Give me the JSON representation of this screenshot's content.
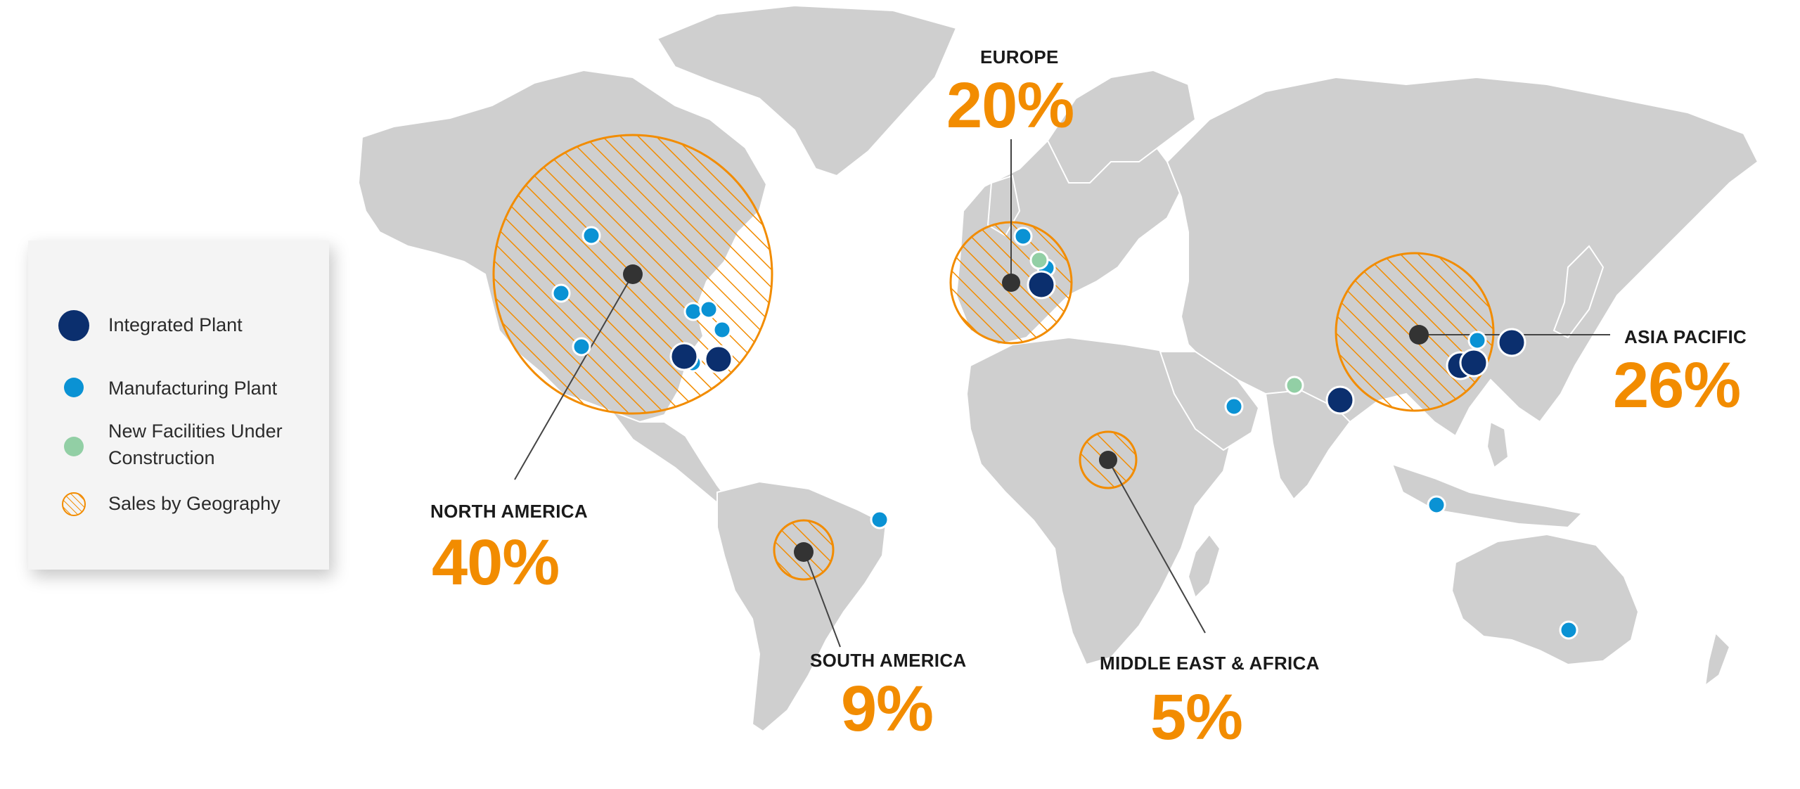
{
  "colors": {
    "land": "#cfcfcf",
    "water_bodies": "#b3c3d6",
    "integrated_plant": "#0b2f6e",
    "manufacturing_plant": "#0a92d4",
    "new_facility": "#92cfa5",
    "sales_hatch": "#f28c00",
    "centroid_dot": "#333333",
    "leader_line": "#444444"
  },
  "legend": {
    "items": [
      {
        "icon": "integrated-plant-icon",
        "label": "Integrated Plant"
      },
      {
        "icon": "manufacturing-plant-icon",
        "label": "Manufacturing Plant"
      },
      {
        "icon": "new-facility-icon",
        "label": "New Facilities Under\nConstruction"
      },
      {
        "icon": "sales-hatch-icon",
        "label": "Sales by Geography"
      }
    ]
  },
  "regions": [
    {
      "id": "north-america",
      "name": "NORTH AMERICA",
      "percent": "40%",
      "share": 40
    },
    {
      "id": "europe",
      "name": "EUROPE",
      "percent": "20%",
      "share": 20
    },
    {
      "id": "asia-pacific",
      "name": "ASIA PACIFIC",
      "percent": "26%",
      "share": 26
    },
    {
      "id": "south-america",
      "name": "SOUTH AMERICA",
      "percent": "9%",
      "share": 9
    },
    {
      "id": "middle-east-africa",
      "name": "MIDDLE EAST & AFRICA",
      "percent": "5%",
      "share": 5
    }
  ]
}
